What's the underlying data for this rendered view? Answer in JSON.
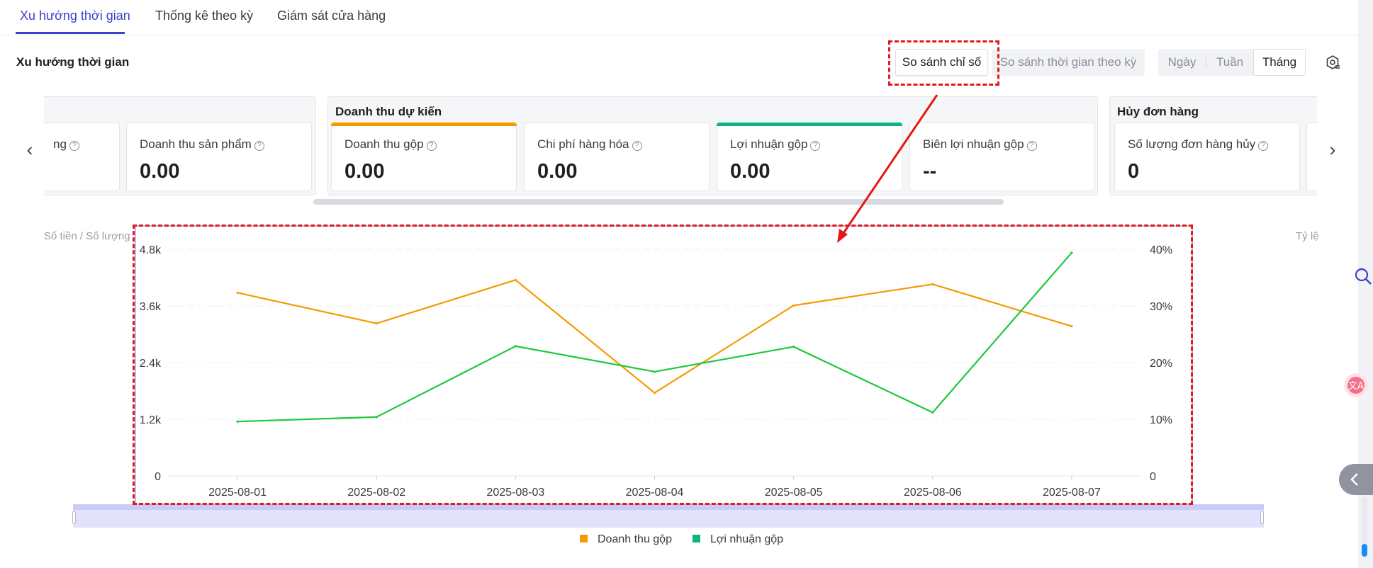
{
  "tabs": [
    {
      "label": "Xu hướng thời gian",
      "active": true
    },
    {
      "label": "Thống kê theo kỳ",
      "active": false
    },
    {
      "label": "Giám sát cửa hàng",
      "active": false
    }
  ],
  "section_title": "Xu hướng thời gian",
  "toolbar": {
    "compare_metric": "So sánh chỉ số",
    "compare_period": "So sánh thời gian theo kỳ",
    "granularity": [
      "Ngày",
      "Tuần",
      "Tháng"
    ],
    "granularity_selected": "Tháng"
  },
  "metric_groups": [
    {
      "title": "",
      "cards": [
        {
          "label": "ng",
          "value": ""
        },
        {
          "label": "Doanh thu sản phẩm",
          "value": "0.00"
        }
      ]
    },
    {
      "title": "Doanh thu dự kiến",
      "cards": [
        {
          "label": "Doanh thu gộp",
          "value": "0.00",
          "accent": "#f59a00"
        },
        {
          "label": "Chi phí hàng hóa",
          "value": "0.00"
        },
        {
          "label": "Lợi nhuận gộp",
          "value": "0.00",
          "accent": "#0cb47f"
        },
        {
          "label": "Biên lợi nhuận gộp",
          "value": "--"
        }
      ]
    },
    {
      "title": "Hủy đơn hàng",
      "cards": [
        {
          "label": "Số lượng đơn hàng hủy",
          "value": "0"
        }
      ]
    }
  ],
  "chart_background": {
    "left_axis_title": "Số tiền / Số lượng",
    "right_axis_title": "Tỷ lệ"
  },
  "chart_data": {
    "type": "line",
    "x": [
      "2025-08-01",
      "2025-08-02",
      "2025-08-03",
      "2025-08-04",
      "2025-08-05",
      "2025-08-06",
      "2025-08-07"
    ],
    "y_left_ticks": [
      "0",
      "1.2k",
      "2.4k",
      "3.6k",
      "4.8k"
    ],
    "y_left_lim": [
      0,
      4800
    ],
    "y_right_ticks": [
      "0",
      "10%",
      "20%",
      "30%",
      "40%"
    ],
    "y_right_lim": [
      0,
      40
    ],
    "grid": true,
    "legend_position": "bottom",
    "series": [
      {
        "name": "Doanh thu gộp",
        "axis": "left",
        "color": "#f59a00",
        "values": [
          3880,
          3230,
          4150,
          1760,
          3610,
          4060,
          3170
        ]
      },
      {
        "name": "Lợi nhuận gộp",
        "axis": "right",
        "color": "#1dc93c",
        "values": [
          9.6,
          10.4,
          22.9,
          18.4,
          22.8,
          11.2,
          39.4
        ]
      }
    ]
  },
  "legend": [
    {
      "label": "Doanh thu gộp",
      "color": "#f59a00"
    },
    {
      "label": "Lợi nhuận gộp",
      "color": "#0cb47f"
    }
  ]
}
